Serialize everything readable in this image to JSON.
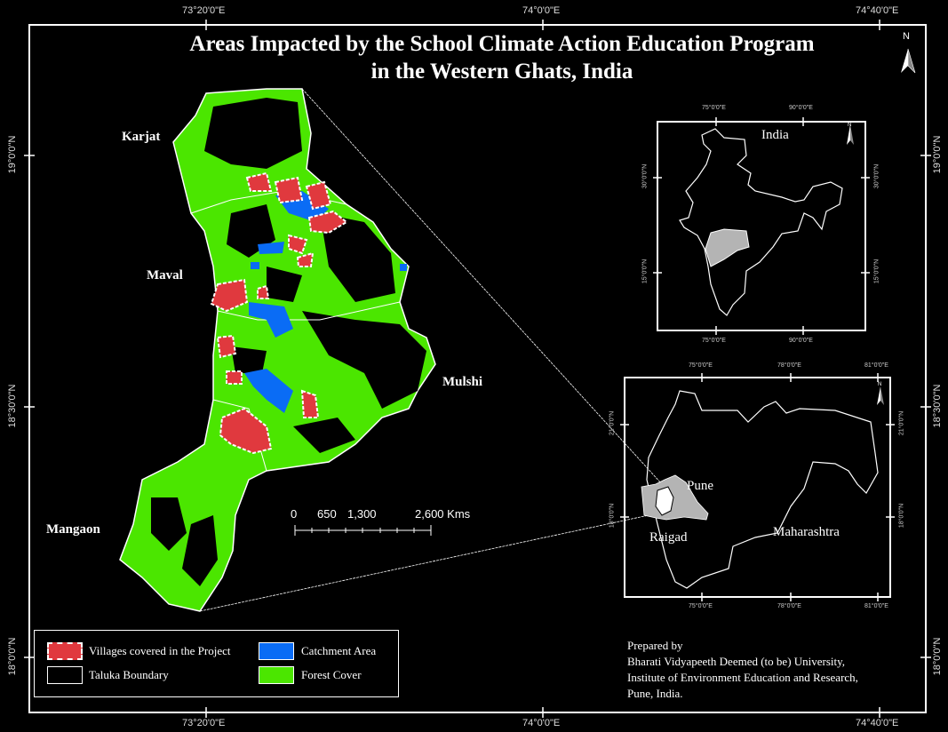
{
  "title": {
    "line1": "Areas Impacted by the School Climate Action Education Program",
    "line2": "in the Western Ghats,  India"
  },
  "north_arrow": "N",
  "graticule": {
    "top": [
      "73°20'0\"E",
      "74°0'0\"E",
      "74°40'0\"E"
    ],
    "bottom": [
      "73°20'0\"E",
      "74°0'0\"E",
      "74°40'0\"E"
    ],
    "left": [
      "19°0'0\"N",
      "18°30'0\"N",
      "18°0'0\"N"
    ],
    "right": [
      "19°0'0\"N",
      "18°30'0\"N",
      "18°0'0\"N"
    ]
  },
  "taluka_labels": [
    "Karjat",
    "Maval",
    "Mulshi",
    "Mangaon"
  ],
  "scale_bar": {
    "labels": [
      "0",
      "650",
      "1,300",
      "2,600 Kms"
    ]
  },
  "inset_india": {
    "label": "India",
    "north": "N",
    "ticks_x": [
      "75°0'0\"E",
      "90°0'0\"E"
    ],
    "ticks_y": [
      "30°0'0\"N",
      "15°0'0\"N"
    ]
  },
  "inset_maharashtra": {
    "labels": [
      "Pune",
      "Raigad",
      "Maharashtra"
    ],
    "north": "N",
    "ticks_x": [
      "75°0'0\"E",
      "78°0'0\"E",
      "81°0'0\"E"
    ],
    "ticks_y": [
      "21°0'0\"N",
      "18°0'0\"N"
    ]
  },
  "legend": {
    "items": [
      {
        "label": "Villages covered in the Project",
        "color": "#e0393e"
      },
      {
        "label": "Catchment Area",
        "color": "#0a6cf5"
      },
      {
        "label": "Taluka Boundary",
        "color": "#000000"
      },
      {
        "label": "Forest Cover",
        "color": "#4be600"
      }
    ]
  },
  "credit": {
    "line1": "Prepared by",
    "line2": "Bharati Vidyapeeth Deemed (to be) University,",
    "line3": "Institute of Environment Education and Research,",
    "line4": "Pune, India."
  },
  "colors": {
    "forest": "#4be600",
    "village": "#e0393e",
    "catchment": "#0a6cf5",
    "highlight": "#b4b4b4",
    "background": "#000000"
  }
}
